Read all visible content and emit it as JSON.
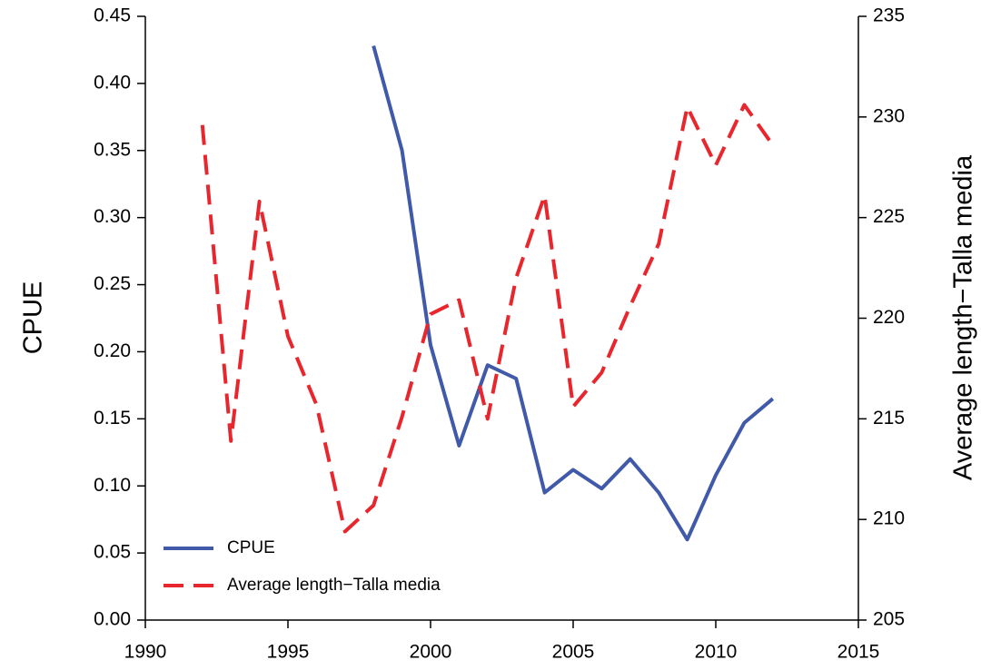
{
  "chart_data": {
    "type": "line",
    "x": [
      1992,
      1993,
      1994,
      1995,
      1996,
      1997,
      1998,
      1999,
      2000,
      2001,
      2002,
      2003,
      2004,
      2005,
      2006,
      2007,
      2008,
      2009,
      2010,
      2011,
      2012
    ],
    "series": [
      {
        "name": "CPUE",
        "color": "#4059a9",
        "dash": false,
        "values": [
          null,
          null,
          null,
          null,
          null,
          null,
          0.428,
          0.35,
          0.205,
          0.13,
          0.19,
          0.18,
          0.095,
          0.112,
          0.098,
          0.12,
          0.095,
          0.06,
          0.108,
          0.147,
          0.165
        ]
      },
      {
        "name": "Average length−Talla media",
        "color": "#e8262d",
        "dash": true,
        "axis": "y2",
        "values": [
          229.6,
          213.9,
          225.8,
          219.1,
          215.7,
          209.4,
          210.7,
          215.1,
          220.2,
          220.9,
          215.0,
          222.0,
          226.1,
          215.6,
          217.3,
          220.6,
          223.7,
          230.5,
          227.6,
          230.6,
          228.6
        ]
      }
    ],
    "ylabel": "CPUE",
    "y2label": "Average length−Talla media",
    "xlim": [
      1990,
      2015
    ],
    "xticks": [
      1990,
      1995,
      2000,
      2005,
      2010,
      2015
    ],
    "ylim": [
      0,
      0.45
    ],
    "yticks": [
      {
        "value": 0,
        "label": "0.00"
      },
      0.05,
      {
        "value": 0.1,
        "label": "0.10"
      },
      0.15,
      {
        "value": 0.2,
        "label": "0.20"
      },
      0.25,
      {
        "value": 0.3,
        "label": "0.30"
      },
      0.35,
      {
        "value": 0.4,
        "label": "0.40"
      },
      0.45
    ],
    "y2lim": [
      205,
      235
    ],
    "y2ticks": [
      205,
      210,
      215,
      220,
      225,
      230,
      235
    ],
    "legend": "bottom-left",
    "grid": false
  }
}
